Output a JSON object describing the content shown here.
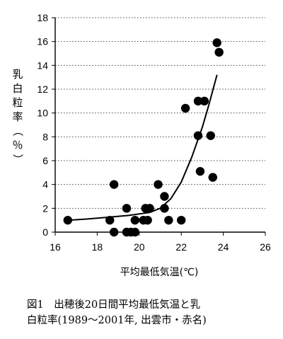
{
  "chart_data": {
    "type": "scatter",
    "xlabel": "平均最低気温(℃)",
    "ylabel_chars": [
      "乳",
      "白",
      "粒",
      "率",
      "（",
      "％",
      "）"
    ],
    "xlim": [
      16,
      26
    ],
    "ylim": [
      0,
      18
    ],
    "x_ticks": [
      16,
      18,
      20,
      22,
      24,
      26
    ],
    "y_ticks": [
      0,
      2,
      4,
      6,
      8,
      10,
      12,
      14,
      16,
      18
    ],
    "grid": "horizontal dotted",
    "points": [
      {
        "x": 16.6,
        "y": 1.0
      },
      {
        "x": 18.6,
        "y": 1.0
      },
      {
        "x": 18.8,
        "y": 4.0
      },
      {
        "x": 18.8,
        "y": 0.0
      },
      {
        "x": 19.4,
        "y": 2.0
      },
      {
        "x": 19.4,
        "y": 0.0
      },
      {
        "x": 19.6,
        "y": 0.0
      },
      {
        "x": 19.8,
        "y": 1.0
      },
      {
        "x": 19.8,
        "y": 0.0
      },
      {
        "x": 20.2,
        "y": 1.0
      },
      {
        "x": 20.3,
        "y": 2.0
      },
      {
        "x": 20.5,
        "y": 2.0
      },
      {
        "x": 20.4,
        "y": 1.0
      },
      {
        "x": 20.9,
        "y": 4.0
      },
      {
        "x": 21.2,
        "y": 3.0
      },
      {
        "x": 21.2,
        "y": 2.0
      },
      {
        "x": 21.4,
        "y": 1.0
      },
      {
        "x": 22.0,
        "y": 1.0
      },
      {
        "x": 22.2,
        "y": 10.4
      },
      {
        "x": 22.8,
        "y": 11.0
      },
      {
        "x": 22.8,
        "y": 8.1
      },
      {
        "x": 23.1,
        "y": 11.0
      },
      {
        "x": 22.9,
        "y": 5.1
      },
      {
        "x": 23.4,
        "y": 8.1
      },
      {
        "x": 23.5,
        "y": 4.6
      },
      {
        "x": 23.7,
        "y": 15.9
      },
      {
        "x": 23.8,
        "y": 15.1
      }
    ],
    "trend": [
      {
        "x": 16.6,
        "y": 1.0
      },
      {
        "x": 17.5,
        "y": 1.1
      },
      {
        "x": 18.5,
        "y": 1.25
      },
      {
        "x": 19.5,
        "y": 1.4
      },
      {
        "x": 20.5,
        "y": 1.65
      },
      {
        "x": 21.0,
        "y": 2.0
      },
      {
        "x": 21.5,
        "y": 2.8
      },
      {
        "x": 22.0,
        "y": 4.2
      },
      {
        "x": 22.5,
        "y": 6.3
      },
      {
        "x": 23.0,
        "y": 8.8
      },
      {
        "x": 23.3,
        "y": 10.6
      },
      {
        "x": 23.7,
        "y": 13.2
      }
    ]
  },
  "caption": {
    "line1": "図1　出穂後20日間平均最低気温と乳",
    "line2": "白粒率(1989～2001年, 出雲市・赤名)"
  }
}
